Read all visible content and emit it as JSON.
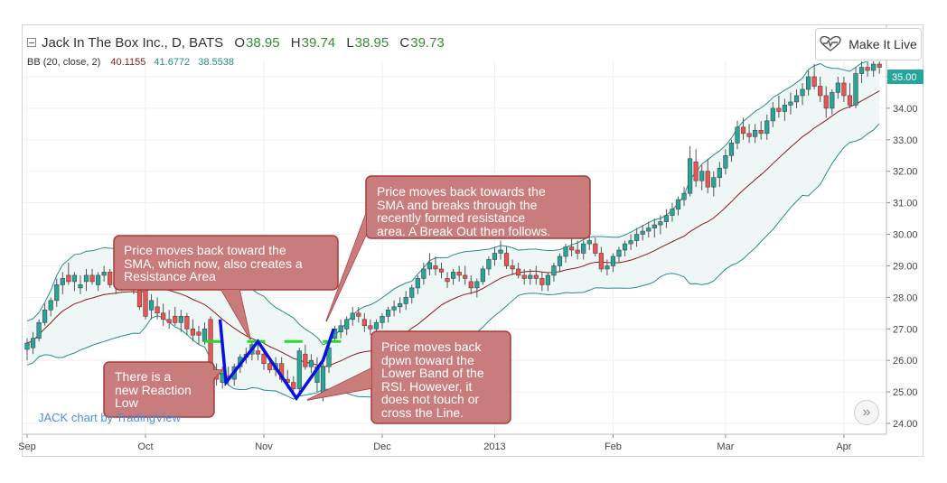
{
  "header": {
    "title": "Jack In The Box Inc., D, BATS",
    "open_label": "O",
    "open": "38.95",
    "high_label": "H",
    "high": "39.74",
    "low_label": "L",
    "low": "38.95",
    "close_label": "C",
    "close": "39.73"
  },
  "indicator": {
    "label": "BB (20, close, 2)",
    "basis": "40.1155",
    "upper": "41.6772",
    "lower": "38.5538"
  },
  "live_button": {
    "label": "Make It Live",
    "icon": "heart-pulse-icon"
  },
  "watermark": "JACK chart by TradingView",
  "nav_button": {
    "label": "»",
    "icon": "double-chevron-right-icon"
  },
  "callouts": [
    {
      "id": "reaction-low",
      "text": [
        "There is a",
        "new Reaction",
        "Low"
      ]
    },
    {
      "id": "resistance",
      "text": [
        "Price moves back toward the",
        "SMA, which now, also creates a",
        "Resistance Area"
      ]
    },
    {
      "id": "breakout",
      "text": [
        "Price moves back towards the",
        "SMA and breaks through the",
        "recently formed resistance",
        "area. A Break Out then follows."
      ]
    },
    {
      "id": "lower-band",
      "text": [
        "Price moves back",
        "dpwn toward the",
        "Lower Band of the",
        "RSI. However, it",
        "does not touch or",
        "cross the Line."
      ]
    }
  ],
  "colors": {
    "up": "#26a69a",
    "down": "#ef5350",
    "basis": "#8b1a1a",
    "band": "#2a8a8a",
    "band_fill": "#eef7f6",
    "callout_fill": "#c87c7c",
    "callout_stroke": "#a83a3a",
    "pattern": "#0a10e0",
    "level": "#22dd22",
    "price_tag": "#26a69a"
  },
  "chart_data": {
    "type": "candlestick",
    "title": "Jack In The Box Inc., D, BATS",
    "x_tick_labels": [
      "Sep",
      "Oct",
      "Nov",
      "Dec",
      "2013",
      "Feb",
      "Mar",
      "Apr"
    ],
    "x_tick_days": [
      0,
      20,
      40,
      60,
      79,
      99,
      118,
      138
    ],
    "y_tick_labels": [
      "35.00",
      "34.00",
      "33.00",
      "32.00",
      "31.00",
      "30.00",
      "29.00",
      "28.00",
      "27.00",
      "26.00",
      "25.00",
      "24.00"
    ],
    "ylim": [
      23.6,
      35.5
    ],
    "grid": true,
    "candles": [
      [
        26.35,
        26.7,
        26.0,
        26.55
      ],
      [
        26.4,
        26.9,
        26.2,
        26.7
      ],
      [
        26.7,
        27.3,
        26.6,
        27.2
      ],
      [
        27.2,
        27.8,
        27.1,
        27.6
      ],
      [
        27.6,
        28.0,
        27.4,
        27.9
      ],
      [
        27.9,
        28.6,
        27.7,
        28.4
      ],
      [
        28.4,
        28.8,
        28.1,
        28.6
      ],
      [
        28.7,
        29.1,
        28.4,
        28.5
      ],
      [
        28.5,
        28.8,
        28.2,
        28.7
      ],
      [
        28.3,
        28.7,
        28.1,
        28.4
      ],
      [
        28.5,
        28.9,
        28.2,
        28.7
      ],
      [
        28.7,
        28.9,
        28.4,
        28.5
      ],
      [
        28.4,
        28.8,
        28.2,
        28.7
      ],
      [
        28.7,
        29.0,
        28.5,
        28.8
      ],
      [
        28.8,
        28.9,
        28.3,
        28.4
      ],
      [
        28.4,
        28.7,
        28.1,
        28.5
      ],
      [
        28.5,
        28.7,
        28.2,
        28.6
      ],
      [
        28.6,
        28.8,
        28.3,
        28.4
      ],
      [
        28.4,
        28.6,
        28.1,
        28.3
      ],
      [
        28.4,
        28.6,
        27.6,
        27.7
      ],
      [
        28.4,
        28.5,
        27.3,
        27.4
      ],
      [
        27.6,
        28.1,
        27.3,
        27.9
      ],
      [
        27.7,
        28.0,
        27.3,
        27.5
      ],
      [
        27.5,
        27.8,
        27.1,
        27.3
      ],
      [
        27.3,
        27.6,
        27.0,
        27.2
      ],
      [
        27.4,
        27.7,
        27.1,
        27.2
      ],
      [
        27.2,
        27.6,
        26.9,
        27.4
      ],
      [
        27.4,
        27.5,
        26.8,
        27.0
      ],
      [
        27.0,
        27.3,
        26.6,
        26.8
      ],
      [
        26.9,
        27.1,
        26.5,
        26.8
      ],
      [
        26.6,
        27.2,
        26.5,
        27.0
      ],
      [
        27.3,
        27.4,
        25.6,
        25.7
      ],
      [
        25.7,
        25.9,
        25.2,
        25.4
      ],
      [
        25.3,
        25.8,
        25.1,
        25.6
      ],
      [
        25.5,
        25.8,
        25.2,
        25.4
      ],
      [
        25.4,
        25.9,
        25.2,
        25.8
      ],
      [
        25.8,
        26.2,
        25.6,
        26.1
      ],
      [
        26.1,
        26.4,
        25.9,
        26.2
      ],
      [
        26.2,
        26.6,
        26.0,
        26.5
      ],
      [
        26.3,
        26.6,
        26.0,
        26.2
      ],
      [
        26.2,
        26.4,
        25.7,
        25.9
      ],
      [
        25.9,
        26.1,
        25.6,
        25.7
      ],
      [
        25.7,
        26.1,
        25.5,
        25.9
      ],
      [
        25.9,
        26.1,
        25.3,
        25.4
      ],
      [
        25.4,
        25.7,
        25.1,
        25.3
      ],
      [
        25.3,
        25.5,
        24.9,
        25.1
      ],
      [
        25.1,
        26.4,
        25.0,
        26.3
      ],
      [
        26.2,
        26.5,
        25.7,
        25.8
      ],
      [
        25.8,
        26.2,
        25.6,
        26.0
      ],
      [
        25.3,
        26.1,
        25.0,
        25.8
      ],
      [
        24.9,
        26.0,
        24.7,
        25.8
      ],
      [
        25.8,
        26.6,
        25.6,
        26.4
      ],
      [
        26.7,
        27.1,
        26.6,
        27.0
      ],
      [
        26.9,
        27.3,
        26.7,
        27.1
      ],
      [
        27.0,
        27.4,
        26.8,
        27.3
      ],
      [
        27.3,
        27.7,
        27.1,
        27.5
      ],
      [
        27.5,
        27.7,
        27.2,
        27.4
      ],
      [
        27.3,
        27.5,
        26.9,
        27.1
      ],
      [
        27.1,
        27.3,
        26.8,
        27.0
      ],
      [
        27.0,
        27.3,
        26.8,
        27.2
      ],
      [
        27.2,
        27.5,
        27.0,
        27.4
      ],
      [
        27.4,
        27.7,
        27.2,
        27.6
      ],
      [
        27.6,
        27.9,
        27.4,
        27.7
      ],
      [
        27.7,
        28.0,
        27.5,
        27.8
      ],
      [
        27.8,
        28.2,
        27.6,
        28.0
      ],
      [
        28.0,
        28.4,
        27.8,
        28.3
      ],
      [
        28.3,
        28.7,
        28.1,
        28.6
      ],
      [
        28.6,
        29.1,
        28.4,
        28.9
      ],
      [
        28.9,
        29.4,
        28.7,
        29.1
      ],
      [
        29.0,
        29.3,
        28.7,
        28.9
      ],
      [
        28.9,
        29.1,
        28.6,
        28.8
      ],
      [
        28.6,
        28.8,
        28.3,
        28.5
      ],
      [
        28.6,
        28.9,
        28.4,
        28.8
      ],
      [
        28.8,
        29.0,
        28.5,
        28.7
      ],
      [
        28.7,
        29.0,
        28.4,
        28.6
      ],
      [
        28.5,
        28.7,
        28.1,
        28.3
      ],
      [
        28.3,
        28.6,
        28.0,
        28.5
      ],
      [
        28.5,
        29.0,
        28.4,
        28.9
      ],
      [
        28.9,
        29.3,
        28.7,
        29.2
      ],
      [
        29.2,
        29.6,
        29.0,
        29.4
      ],
      [
        29.4,
        29.8,
        29.2,
        29.5
      ],
      [
        29.4,
        29.6,
        28.9,
        29.0
      ],
      [
        29.0,
        29.2,
        28.7,
        28.9
      ],
      [
        28.9,
        29.1,
        28.6,
        28.7
      ],
      [
        28.7,
        28.9,
        28.4,
        28.6
      ],
      [
        28.6,
        28.9,
        28.4,
        28.7
      ],
      [
        28.7,
        29.0,
        28.4,
        28.6
      ],
      [
        28.6,
        28.8,
        28.2,
        28.4
      ],
      [
        28.4,
        28.8,
        28.2,
        28.7
      ],
      [
        28.7,
        29.1,
        28.5,
        29.0
      ],
      [
        29.0,
        29.4,
        28.8,
        29.3
      ],
      [
        29.3,
        29.7,
        29.1,
        29.6
      ],
      [
        29.6,
        29.9,
        29.3,
        29.5
      ],
      [
        29.5,
        29.8,
        29.2,
        29.4
      ],
      [
        29.4,
        29.8,
        29.2,
        29.7
      ],
      [
        29.7,
        30.0,
        29.5,
        29.8
      ],
      [
        29.7,
        29.9,
        29.3,
        29.4
      ],
      [
        29.4,
        29.6,
        28.8,
        28.9
      ],
      [
        28.9,
        29.2,
        28.7,
        29.0
      ],
      [
        29.0,
        29.4,
        28.8,
        29.3
      ],
      [
        29.3,
        29.6,
        29.1,
        29.5
      ],
      [
        29.5,
        29.8,
        29.3,
        29.7
      ],
      [
        29.7,
        30.0,
        29.5,
        29.8
      ],
      [
        29.8,
        30.2,
        29.6,
        30.0
      ],
      [
        30.0,
        30.3,
        29.8,
        30.1
      ],
      [
        30.1,
        30.4,
        29.9,
        30.2
      ],
      [
        30.2,
        30.5,
        29.9,
        30.3
      ],
      [
        30.3,
        30.6,
        30.0,
        30.4
      ],
      [
        30.4,
        30.8,
        30.2,
        30.6
      ],
      [
        30.6,
        31.0,
        30.4,
        30.8
      ],
      [
        30.8,
        31.2,
        30.6,
        31.1
      ],
      [
        31.1,
        31.5,
        30.9,
        31.3
      ],
      [
        31.3,
        32.8,
        31.2,
        32.4
      ],
      [
        32.3,
        32.7,
        31.5,
        31.7
      ],
      [
        31.7,
        32.2,
        31.4,
        32.0
      ],
      [
        32.0,
        32.4,
        31.3,
        31.5
      ],
      [
        31.5,
        32.0,
        31.2,
        31.8
      ],
      [
        31.8,
        32.3,
        31.5,
        32.1
      ],
      [
        32.1,
        32.7,
        31.9,
        32.5
      ],
      [
        32.5,
        33.0,
        32.3,
        32.9
      ],
      [
        32.9,
        33.6,
        32.7,
        33.4
      ],
      [
        33.4,
        33.7,
        33.0,
        33.2
      ],
      [
        33.2,
        33.5,
        32.9,
        33.1
      ],
      [
        33.1,
        33.5,
        32.9,
        33.3
      ],
      [
        33.3,
        33.6,
        33.0,
        33.2
      ],
      [
        33.2,
        33.8,
        33.0,
        33.6
      ],
      [
        33.6,
        34.2,
        33.4,
        34.0
      ],
      [
        34.0,
        34.4,
        33.7,
        33.9
      ],
      [
        33.9,
        34.3,
        33.6,
        34.1
      ],
      [
        34.1,
        34.5,
        33.8,
        34.2
      ],
      [
        34.2,
        34.6,
        34.0,
        34.4
      ],
      [
        34.4,
        34.8,
        34.1,
        34.6
      ],
      [
        34.6,
        35.2,
        34.4,
        35.0
      ],
      [
        35.0,
        35.4,
        34.6,
        34.7
      ],
      [
        34.7,
        35.0,
        34.2,
        34.4
      ],
      [
        34.4,
        34.7,
        33.7,
        34.0
      ],
      [
        34.0,
        34.6,
        33.8,
        34.5
      ],
      [
        34.5,
        35.0,
        34.3,
        34.8
      ],
      [
        34.8,
        35.0,
        34.2,
        34.4
      ],
      [
        34.4,
        34.8,
        34.0,
        34.1
      ],
      [
        34.1,
        35.3,
        34.0,
        35.1
      ],
      [
        35.1,
        35.5,
        34.8,
        35.3
      ],
      [
        35.3,
        35.5,
        35.0,
        35.2
      ],
      [
        35.2,
        35.5,
        35.0,
        35.4
      ],
      [
        35.4,
        35.5,
        35.1,
        35.3
      ]
    ],
    "pattern_line": [
      [
        32.6,
        27.3
      ],
      [
        33.6,
        25.3
      ],
      [
        39.0,
        26.6
      ],
      [
        45.5,
        24.8
      ],
      [
        50.0,
        26.0
      ],
      [
        51.8,
        27.0
      ]
    ],
    "level_marks": [
      [
        31.5,
        26.6
      ],
      [
        38.7,
        26.6
      ],
      [
        45.0,
        26.6
      ],
      [
        51.5,
        26.6
      ]
    ],
    "last_price": "35.00"
  }
}
